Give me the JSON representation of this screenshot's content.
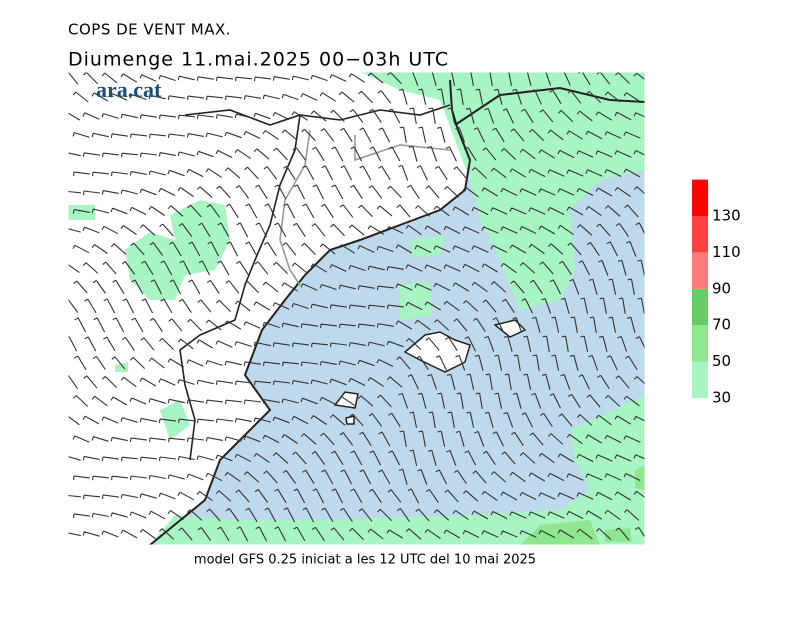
{
  "header": {
    "title": "COPS DE VENT MAX.",
    "subtitle": "Diumenge  11.mai.2025 00−03h UTC",
    "logo": "ara.cat"
  },
  "legend": {
    "ticks": [
      30,
      50,
      70,
      90,
      110,
      130
    ],
    "colors": [
      "#a8f5c4",
      "#8ee68e",
      "#66cc66",
      "#ff7a7a",
      "#ff4040",
      "#ff0000"
    ]
  },
  "footer": "model GFS 0.25 iniciat a les 12 UTC del 10 mai 2025"
}
